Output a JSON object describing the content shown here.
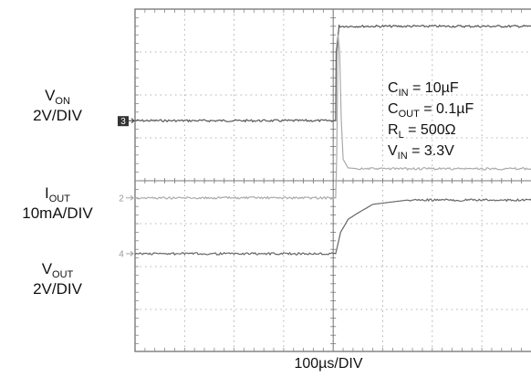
{
  "chart_data": {
    "type": "line",
    "title": "",
    "xlabel": "100µs/DIV",
    "ylabel": "",
    "grid": true,
    "x_divisions": 10,
    "y_divisions": 8,
    "channels": [
      {
        "id": "ch3",
        "marker": "3",
        "label_main": "V",
        "label_sub": "ON",
        "scale": "2V/DIV"
      },
      {
        "id": "ch2",
        "marker": "2",
        "label_main": "I",
        "label_sub": "OUT",
        "scale": "10mA/DIV"
      },
      {
        "id": "ch4",
        "marker": "4",
        "label_main": "V",
        "label_sub": "OUT",
        "scale": "2V/DIV"
      }
    ],
    "annotations": [
      {
        "main": "C",
        "sub": "IN",
        "rest": " = 10µF"
      },
      {
        "main": "C",
        "sub": "OUT",
        "rest": " = 0.1µF"
      },
      {
        "main": "R",
        "sub": "L",
        "rest": " = 500Ω"
      },
      {
        "main": "V",
        "sub": "IN",
        "rest": " = 3.3V"
      }
    ],
    "series": [
      {
        "name": "VON",
        "color": "#555555",
        "x_div": [
          0,
          4.05,
          4.06,
          4.12,
          10
        ],
        "y_div": [
          2.6,
          2.6,
          1.0,
          0.4,
          0.4
        ]
      },
      {
        "name": "IOUT",
        "color": "#aaaaaa",
        "x_div": [
          0,
          4.05,
          4.07,
          4.1,
          4.13,
          4.16,
          4.2,
          4.3,
          4.5,
          5.0,
          10
        ],
        "y_div": [
          4.4,
          4.4,
          3.5,
          0.6,
          1.0,
          2.5,
          3.5,
          3.7,
          3.72,
          3.72,
          3.72
        ]
      },
      {
        "name": "VOUT",
        "color": "#666666",
        "x_div": [
          0,
          4.0,
          4.05,
          4.15,
          4.3,
          4.5,
          4.8,
          5.5,
          7,
          10
        ],
        "y_div": [
          5.7,
          5.7,
          5.7,
          5.2,
          4.9,
          4.75,
          4.55,
          4.45,
          4.45,
          4.45
        ]
      }
    ]
  }
}
